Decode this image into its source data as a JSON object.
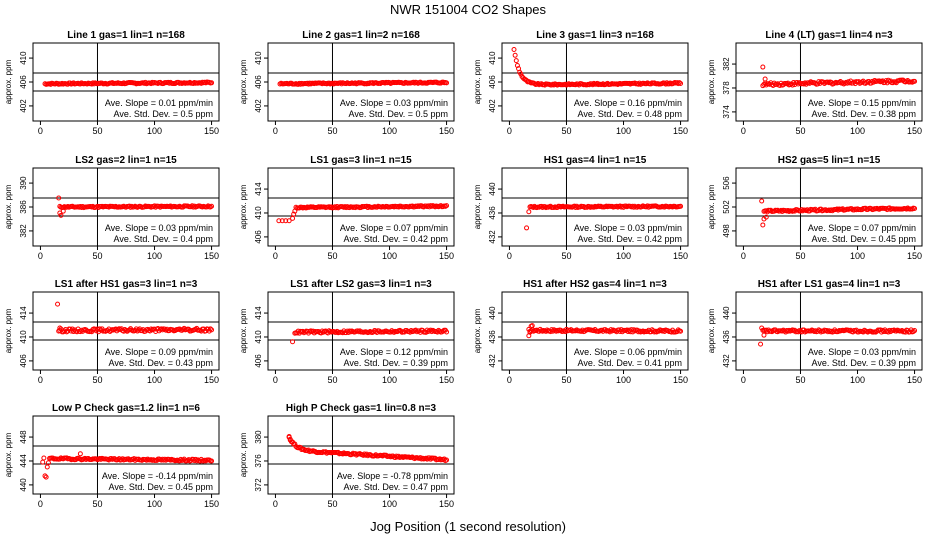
{
  "title": "NWR  151004  CO2 Shapes",
  "xlabel": "Jog Position (1 second resolution)",
  "ylabel": "approx. ppm",
  "slope_prefix": "Ave. Slope = ",
  "slope_unit": "ppm/min",
  "std_prefix": "Ave. Std. Dev. = ",
  "std_unit": "ppm",
  "marker_color": "#ff0000",
  "chart_data": [
    {
      "type": "scatter",
      "title": "Line 1 gas=1 lin=1 n=168",
      "xlim": [
        0,
        150
      ],
      "ylim": [
        400,
        412
      ],
      "yticks": [
        402,
        406,
        410
      ],
      "xticks": [
        0,
        50,
        100,
        150
      ],
      "vline": 50,
      "hlines": [
        404.5,
        407.5
      ],
      "slope": "0.01",
      "std": "0.5",
      "shape": {
        "start": 4,
        "end": 150,
        "base": 405.7,
        "drift": 0.2,
        "noise": 0.12,
        "spikes": []
      }
    },
    {
      "type": "scatter",
      "title": "Line 2 gas=1 lin=2 n=168",
      "xlim": [
        0,
        150
      ],
      "ylim": [
        400,
        412
      ],
      "yticks": [
        402,
        406,
        410
      ],
      "xticks": [
        0,
        50,
        100,
        150
      ],
      "vline": 50,
      "hlines": [
        404.5,
        407.5
      ],
      "slope": "0.03",
      "std": "0.5",
      "shape": {
        "start": 4,
        "end": 150,
        "base": 405.7,
        "drift": 0.2,
        "noise": 0.12,
        "spikes": []
      }
    },
    {
      "type": "scatter",
      "title": "Line 3 gas=1 lin=3 n=168",
      "xlim": [
        0,
        150
      ],
      "ylim": [
        400,
        412
      ],
      "yticks": [
        402,
        406,
        410
      ],
      "xticks": [
        0,
        50,
        100,
        150
      ],
      "vline": 50,
      "hlines": [
        404.5,
        407.5
      ],
      "slope": "0.16",
      "std": "0.48",
      "shape": {
        "start": 4,
        "end": 150,
        "base": 405.5,
        "drift": 0.3,
        "noise": 0.12,
        "decay": {
          "amp": 6,
          "tau": 5
        },
        "spikes": []
      }
    },
    {
      "type": "scatter",
      "title": "Line 4 (LT) gas=1 lin=4 n=3",
      "xlim": [
        0,
        150
      ],
      "ylim": [
        373,
        385
      ],
      "yticks": [
        374,
        378,
        382
      ],
      "xticks": [
        0,
        50,
        100,
        150
      ],
      "vline": 50,
      "hlines": [
        377.5,
        380.5
      ],
      "slope": "0.15",
      "std": "0.38",
      "shape": {
        "start": 17,
        "end": 150,
        "base": 378.6,
        "drift": 0.6,
        "noise": 0.25,
        "spikes": [
          [
            17,
            381.5
          ],
          [
            19,
            379.5
          ]
        ]
      }
    },
    {
      "type": "scatter",
      "title": "LS2 gas=2 lin=1 n=15",
      "xlim": [
        0,
        150
      ],
      "ylim": [
        380,
        392
      ],
      "yticks": [
        382,
        386,
        390
      ],
      "xticks": [
        0,
        50,
        100,
        150
      ],
      "vline": 50,
      "hlines": [
        384.5,
        387.5
      ],
      "slope": "0.03",
      "std": "0.4",
      "shape": {
        "start": 17,
        "end": 150,
        "base": 386.0,
        "drift": 0.1,
        "noise": 0.12,
        "spikes": [
          [
            16,
            387.5
          ],
          [
            17,
            385
          ],
          [
            18,
            384.6
          ],
          [
            20,
            385.3
          ]
        ]
      }
    },
    {
      "type": "scatter",
      "title": "LS1 gas=3 lin=1 n=15",
      "xlim": [
        0,
        150
      ],
      "ylim": [
        405,
        417
      ],
      "yticks": [
        406,
        410,
        414
      ],
      "xticks": [
        0,
        50,
        100,
        150
      ],
      "vline": 50,
      "hlines": [
        409.5,
        412.5
      ],
      "slope": "0.07",
      "std": "0.42",
      "shape": {
        "start": 18,
        "end": 150,
        "base": 410.9,
        "drift": 0.25,
        "noise": 0.12,
        "spikes": [
          [
            3,
            408.7
          ],
          [
            6,
            408.7
          ],
          [
            9,
            408.7
          ],
          [
            12,
            408.7
          ],
          [
            15,
            409.1
          ],
          [
            16,
            409.8
          ],
          [
            17,
            410.3
          ]
        ]
      }
    },
    {
      "type": "scatter",
      "title": "HS1 gas=4 lin=1 n=15",
      "xlim": [
        0,
        150
      ],
      "ylim": [
        431,
        443
      ],
      "yticks": [
        432,
        436,
        440
      ],
      "xticks": [
        0,
        50,
        100,
        150
      ],
      "vline": 50,
      "hlines": [
        435.5,
        438.5
      ],
      "slope": "0.03",
      "std": "0.42",
      "shape": {
        "start": 18,
        "end": 150,
        "base": 437.0,
        "drift": 0.1,
        "noise": 0.12,
        "spikes": [
          [
            15,
            433.5
          ],
          [
            17,
            436.2
          ]
        ]
      }
    },
    {
      "type": "scatter",
      "title": "HS2 gas=5 lin=1 n=15",
      "xlim": [
        0,
        150
      ],
      "ylim": [
        496,
        508
      ],
      "yticks": [
        498,
        502,
        506
      ],
      "xticks": [
        0,
        50,
        100,
        150
      ],
      "vline": 50,
      "hlines": [
        500.5,
        503.5
      ],
      "slope": "0.07",
      "std": "0.45",
      "shape": {
        "start": 18,
        "end": 150,
        "base": 501.3,
        "drift": 0.5,
        "noise": 0.15,
        "spikes": [
          [
            16,
            503
          ],
          [
            17,
            499
          ],
          [
            18,
            500
          ],
          [
            20,
            500.3
          ]
        ]
      }
    },
    {
      "type": "scatter",
      "title": "LS1 after HS1 gas=3 lin=1 n=3",
      "xlim": [
        0,
        150
      ],
      "ylim": [
        405,
        417
      ],
      "yticks": [
        406,
        410,
        414
      ],
      "xticks": [
        0,
        50,
        100,
        150
      ],
      "vline": 50,
      "hlines": [
        409.5,
        412.5
      ],
      "slope": "0.09",
      "std": "0.43",
      "shape": {
        "start": 16,
        "end": 150,
        "base": 411.1,
        "drift": 0.1,
        "noise": 0.25,
        "spikes": [
          [
            15,
            415.5
          ],
          [
            17,
            411.5
          ]
        ]
      }
    },
    {
      "type": "scatter",
      "title": "LS1 after LS2 gas=3 lin=1 n=3",
      "xlim": [
        0,
        150
      ],
      "ylim": [
        405,
        417
      ],
      "yticks": [
        406,
        410,
        414
      ],
      "xticks": [
        0,
        50,
        100,
        150
      ],
      "vline": 50,
      "hlines": [
        409.5,
        412.5
      ],
      "slope": "0.12",
      "std": "0.39",
      "shape": {
        "start": 17,
        "end": 150,
        "base": 410.8,
        "drift": 0.2,
        "noise": 0.2,
        "spikes": [
          [
            15,
            409.2
          ]
        ]
      }
    },
    {
      "type": "scatter",
      "title": "HS1 after HS2 gas=4 lin=1 n=3",
      "xlim": [
        0,
        150
      ],
      "ylim": [
        431,
        443
      ],
      "yticks": [
        432,
        436,
        440
      ],
      "xticks": [
        0,
        50,
        100,
        150
      ],
      "vline": 50,
      "hlines": [
        435.5,
        438.5
      ],
      "slope": "0.06",
      "std": "0.41",
      "shape": {
        "start": 17,
        "end": 150,
        "base": 437.1,
        "drift": -0.1,
        "noise": 0.2,
        "spikes": [
          [
            17,
            436.2
          ],
          [
            18,
            436.8
          ],
          [
            19,
            437.8
          ],
          [
            20,
            437.9
          ]
        ]
      }
    },
    {
      "type": "scatter",
      "title": "HS1 after LS1 gas=4 lin=1 n=3",
      "xlim": [
        0,
        150
      ],
      "ylim": [
        431,
        443
      ],
      "yticks": [
        432,
        436,
        440
      ],
      "xticks": [
        0,
        50,
        100,
        150
      ],
      "vline": 50,
      "hlines": [
        435.5,
        438.5
      ],
      "slope": "0.03",
      "std": "0.39",
      "shape": {
        "start": 17,
        "end": 150,
        "base": 437.0,
        "drift": 0.0,
        "noise": 0.2,
        "spikes": [
          [
            15,
            434.8
          ],
          [
            16,
            437.5
          ],
          [
            18,
            436.3
          ]
        ]
      }
    },
    {
      "type": "scatter",
      "title": "Low P Check gas=1.2 lin=1 n=6",
      "xlim": [
        0,
        150
      ],
      "ylim": [
        439,
        451
      ],
      "yticks": [
        440,
        444,
        448
      ],
      "xticks": [
        0,
        50,
        100,
        150
      ],
      "vline": 50,
      "hlines": [
        443.5,
        446.5
      ],
      "slope": "-0.14",
      "std": "0.45",
      "shape": {
        "start": 8,
        "end": 150,
        "base": 444.4,
        "drift": -0.3,
        "noise": 0.15,
        "spikes": [
          [
            2,
            443.8
          ],
          [
            3,
            444.5
          ],
          [
            4,
            441.5
          ],
          [
            5,
            441.3
          ],
          [
            6,
            443
          ],
          [
            7,
            443.7
          ],
          [
            35,
            445.2
          ]
        ]
      }
    },
    {
      "type": "scatter",
      "title": "High P Check gas=1 lin=0.8 n=3",
      "xlim": [
        0,
        150
      ],
      "ylim": [
        371,
        383
      ],
      "yticks": [
        372,
        376,
        380
      ],
      "xticks": [
        0,
        50,
        100,
        150
      ],
      "vline": 50,
      "hlines": [
        375.5,
        378.5
      ],
      "slope": "-0.78",
      "std": "0.47",
      "shape": {
        "start": 12,
        "end": 150,
        "base": 377.8,
        "drift": -1.6,
        "noise": 0.15,
        "decay": {
          "amp": 2.2,
          "tau": 6
        },
        "spikes": [
          [
            12,
            380.1
          ],
          [
            13,
            379.5
          ]
        ]
      }
    }
  ]
}
